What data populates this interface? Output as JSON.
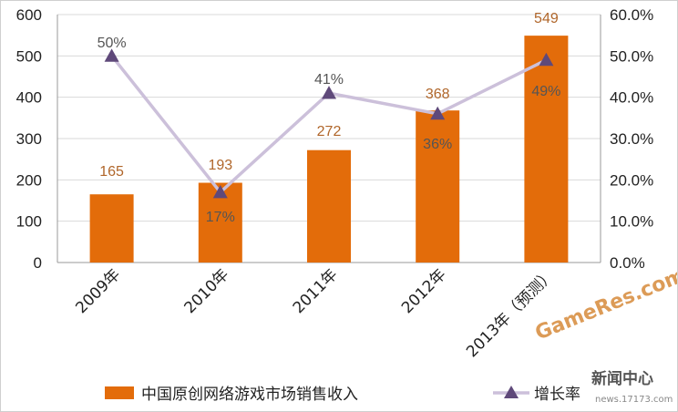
{
  "chart_data": {
    "type": "bar",
    "categories": [
      "2009年",
      "2010年",
      "2011年",
      "2012年",
      "2013年（预测）"
    ],
    "series": [
      {
        "name": "中国原创网络游戏市场销售收入",
        "type": "bar",
        "axis": "left",
        "values": [
          165,
          193,
          272,
          368,
          549
        ],
        "labels": [
          "165",
          "193",
          "272",
          "368",
          "549"
        ]
      },
      {
        "name": "增长率",
        "type": "line",
        "axis": "right",
        "values": [
          0.5,
          0.17,
          0.41,
          0.36,
          0.49
        ],
        "labels": [
          "50%",
          "17%",
          "41%",
          "36%",
          "49%"
        ]
      }
    ],
    "left_axis": {
      "ylim": [
        0,
        600
      ],
      "ticks": [
        "0",
        "100",
        "200",
        "300",
        "400",
        "500",
        "600"
      ]
    },
    "right_axis": {
      "ylim": [
        0,
        0.6
      ],
      "ticks": [
        "0.0%",
        "10.0%",
        "20.0%",
        "30.0%",
        "40.0%",
        "50.0%",
        "60.0%"
      ]
    },
    "grid": true,
    "legend_position": "bottom",
    "colors": {
      "bar": "#E36C0A",
      "line": "#CCC0DA",
      "marker": "#5F497A",
      "grid": "#d9d9d9",
      "bar_label": "#B0662A"
    }
  },
  "watermark": {
    "text1": "GameRes.com",
    "text2": "新闻中心",
    "text3": "news.17173.com"
  }
}
